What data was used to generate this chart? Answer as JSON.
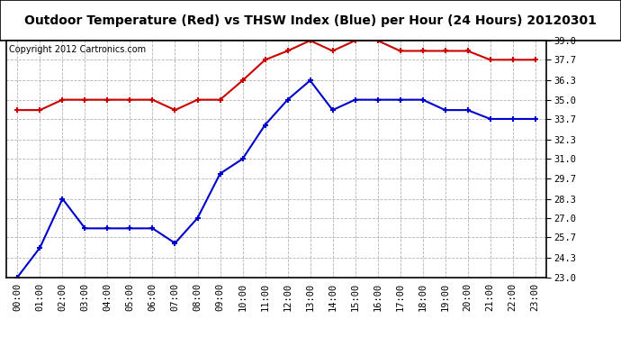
{
  "title": "Outdoor Temperature (Red) vs THSW Index (Blue) per Hour (24 Hours) 20120301",
  "copyright": "Copyright 2012 Cartronics.com",
  "hours": [
    "00:00",
    "01:00",
    "02:00",
    "03:00",
    "04:00",
    "05:00",
    "06:00",
    "07:00",
    "08:00",
    "09:00",
    "10:00",
    "11:00",
    "12:00",
    "13:00",
    "14:00",
    "15:00",
    "16:00",
    "17:00",
    "18:00",
    "19:00",
    "20:00",
    "21:00",
    "22:00",
    "23:00"
  ],
  "red_data": [
    34.3,
    34.3,
    35.0,
    35.0,
    35.0,
    35.0,
    35.0,
    34.3,
    35.0,
    35.0,
    36.3,
    37.7,
    38.3,
    39.0,
    38.3,
    39.0,
    39.0,
    38.3,
    38.3,
    38.3,
    38.3,
    37.7,
    37.7,
    37.7
  ],
  "blue_data": [
    23.0,
    25.0,
    28.3,
    26.3,
    26.3,
    26.3,
    26.3,
    25.3,
    27.0,
    30.0,
    31.0,
    33.3,
    35.0,
    36.3,
    34.3,
    35.0,
    35.0,
    35.0,
    35.0,
    34.3,
    34.3,
    33.7,
    33.7,
    33.7
  ],
  "ylim": [
    23.0,
    39.0
  ],
  "yticks": [
    23.0,
    24.3,
    25.7,
    27.0,
    28.3,
    29.7,
    31.0,
    32.3,
    33.7,
    35.0,
    36.3,
    37.7,
    39.0
  ],
  "red_color": "#cc0000",
  "blue_color": "#0000cc",
  "plot_bg": "#ffffff",
  "fig_bg": "#ffffff",
  "grid_color": "#aaaaaa",
  "title_fontsize": 10,
  "copyright_fontsize": 7,
  "tick_fontsize": 7.5
}
